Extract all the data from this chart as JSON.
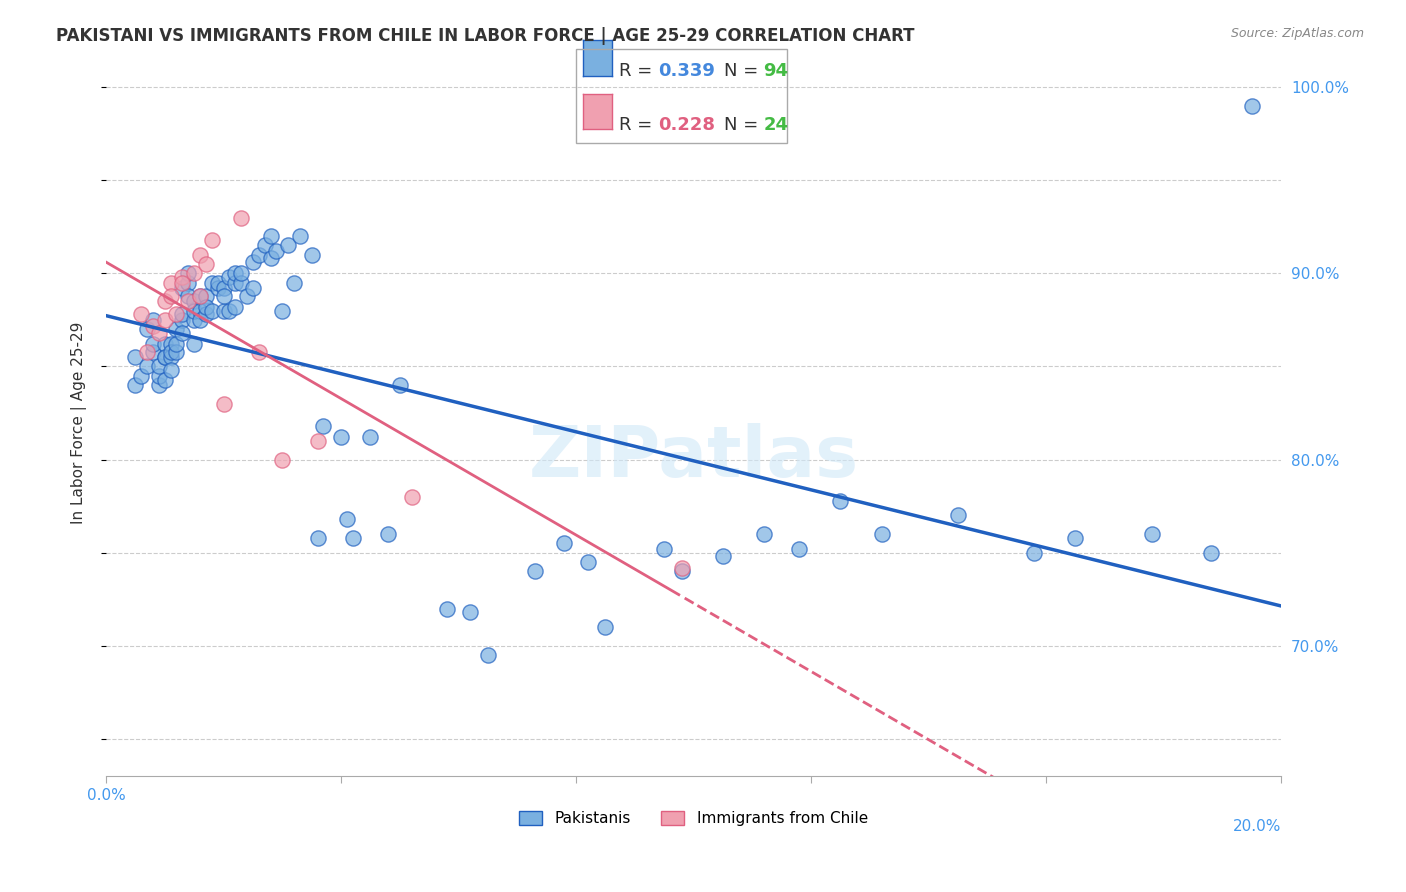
{
  "title": "PAKISTANI VS IMMIGRANTS FROM CHILE IN LABOR FORCE | AGE 25-29 CORRELATION CHART",
  "source": "Source: ZipAtlas.com",
  "xlabel": "",
  "ylabel": "In Labor Force | Age 25-29",
  "x_min": 0.0,
  "x_max": 0.2,
  "y_min": 0.63,
  "y_max": 1.01,
  "r_blue": 0.339,
  "n_blue": 94,
  "r_pink": 0.228,
  "n_pink": 24,
  "blue_color": "#7ab0e0",
  "pink_color": "#f0a0b0",
  "line_blue": "#2060c0",
  "line_pink": "#e06080",
  "legend_r_blue_color": "#4488dd",
  "legend_r_pink_color": "#dd6688",
  "legend_n_blue_color": "#44bb44",
  "legend_n_pink_color": "#44bb44",
  "grid_color": "#cccccc",
  "right_axis_color": "#4499ee",
  "watermark": "ZIPatlas",
  "blue_x": [
    0.005,
    0.005,
    0.006,
    0.007,
    0.007,
    0.008,
    0.008,
    0.008,
    0.009,
    0.009,
    0.009,
    0.01,
    0.01,
    0.01,
    0.01,
    0.011,
    0.011,
    0.011,
    0.011,
    0.012,
    0.012,
    0.012,
    0.013,
    0.013,
    0.013,
    0.013,
    0.014,
    0.014,
    0.014,
    0.015,
    0.015,
    0.015,
    0.015,
    0.016,
    0.016,
    0.016,
    0.017,
    0.017,
    0.017,
    0.018,
    0.018,
    0.019,
    0.019,
    0.02,
    0.02,
    0.02,
    0.021,
    0.021,
    0.022,
    0.022,
    0.022,
    0.023,
    0.023,
    0.024,
    0.025,
    0.025,
    0.026,
    0.027,
    0.028,
    0.028,
    0.029,
    0.03,
    0.031,
    0.032,
    0.033,
    0.035,
    0.036,
    0.037,
    0.04,
    0.041,
    0.042,
    0.045,
    0.048,
    0.05,
    0.058,
    0.062,
    0.065,
    0.073,
    0.078,
    0.082,
    0.085,
    0.095,
    0.098,
    0.105,
    0.112,
    0.118,
    0.125,
    0.132,
    0.145,
    0.158,
    0.165,
    0.178,
    0.188,
    0.195
  ],
  "blue_y": [
    0.855,
    0.84,
    0.845,
    0.85,
    0.87,
    0.858,
    0.862,
    0.875,
    0.84,
    0.845,
    0.85,
    0.843,
    0.855,
    0.862,
    0.855,
    0.862,
    0.855,
    0.848,
    0.858,
    0.87,
    0.858,
    0.862,
    0.892,
    0.875,
    0.878,
    0.868,
    0.895,
    0.888,
    0.9,
    0.885,
    0.875,
    0.88,
    0.862,
    0.888,
    0.88,
    0.875,
    0.878,
    0.888,
    0.882,
    0.895,
    0.88,
    0.892,
    0.895,
    0.88,
    0.892,
    0.888,
    0.88,
    0.898,
    0.895,
    0.9,
    0.882,
    0.895,
    0.9,
    0.888,
    0.906,
    0.892,
    0.91,
    0.915,
    0.92,
    0.908,
    0.912,
    0.88,
    0.915,
    0.895,
    0.92,
    0.91,
    0.758,
    0.818,
    0.812,
    0.768,
    0.758,
    0.812,
    0.76,
    0.84,
    0.72,
    0.718,
    0.695,
    0.74,
    0.755,
    0.745,
    0.71,
    0.752,
    0.74,
    0.748,
    0.76,
    0.752,
    0.778,
    0.76,
    0.77,
    0.75,
    0.758,
    0.76,
    0.75,
    0.99
  ],
  "pink_x": [
    0.006,
    0.007,
    0.008,
    0.009,
    0.01,
    0.01,
    0.011,
    0.011,
    0.012,
    0.013,
    0.013,
    0.014,
    0.015,
    0.016,
    0.016,
    0.017,
    0.018,
    0.02,
    0.023,
    0.026,
    0.03,
    0.036,
    0.052,
    0.098
  ],
  "pink_y": [
    0.878,
    0.858,
    0.872,
    0.868,
    0.875,
    0.885,
    0.895,
    0.888,
    0.878,
    0.898,
    0.895,
    0.885,
    0.9,
    0.888,
    0.91,
    0.905,
    0.918,
    0.83,
    0.93,
    0.858,
    0.8,
    0.81,
    0.78,
    0.742
  ],
  "yticks": [
    0.7,
    0.8,
    0.9,
    1.0
  ],
  "ytick_labels": [
    "70.0%",
    "80.0%",
    "90.0%",
    "100.0%"
  ],
  "xticks": [
    0.0,
    0.04,
    0.08,
    0.12,
    0.16,
    0.2
  ],
  "xtick_labels": [
    "0.0%",
    "",
    "",
    "",
    "",
    "20.0%"
  ]
}
